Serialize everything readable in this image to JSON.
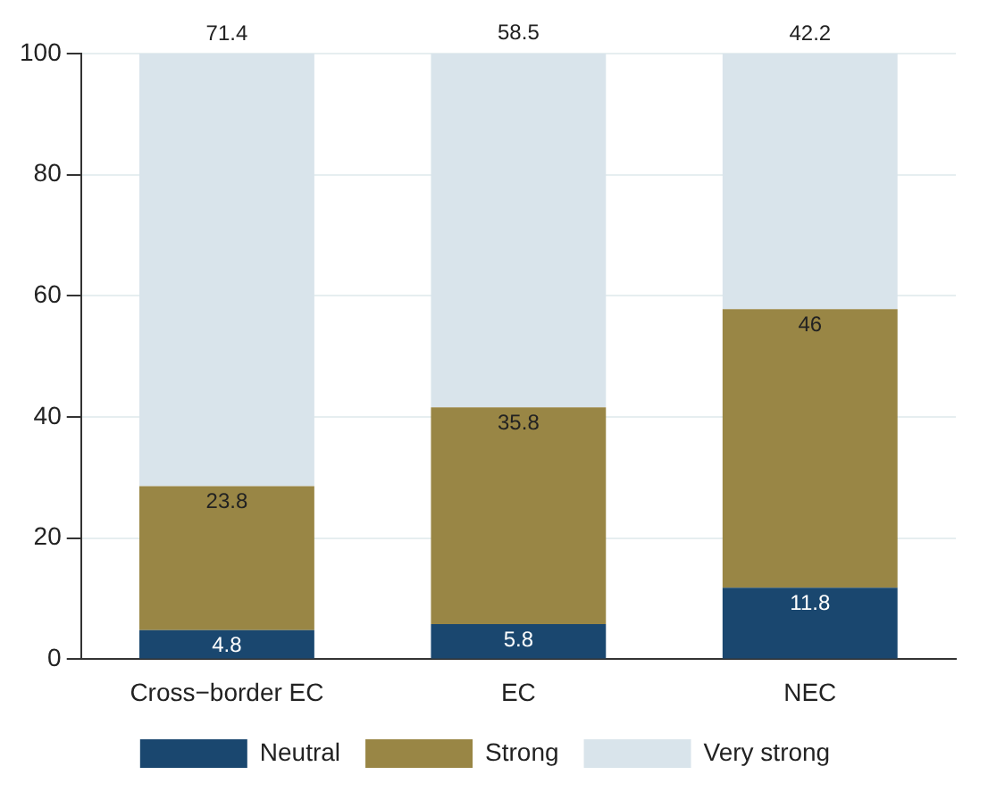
{
  "chart_data": {
    "type": "bar",
    "stacked": true,
    "categories": [
      "Cross−border EC",
      "EC",
      "NEC"
    ],
    "series": [
      {
        "name": "Neutral",
        "color": "#1a476f",
        "values": [
          4.8,
          5.8,
          11.8
        ]
      },
      {
        "name": "Strong",
        "color": "#998645",
        "values": [
          23.8,
          35.8,
          46
        ]
      },
      {
        "name": "Very strong",
        "color": "#d9e4eb",
        "values": [
          71.4,
          58.5,
          42.2
        ]
      }
    ],
    "ylim": [
      0,
      100
    ],
    "yticks": [
      0,
      20,
      40,
      60,
      80,
      100
    ],
    "grid": "y",
    "legend": "bottom",
    "data_labels": true
  }
}
